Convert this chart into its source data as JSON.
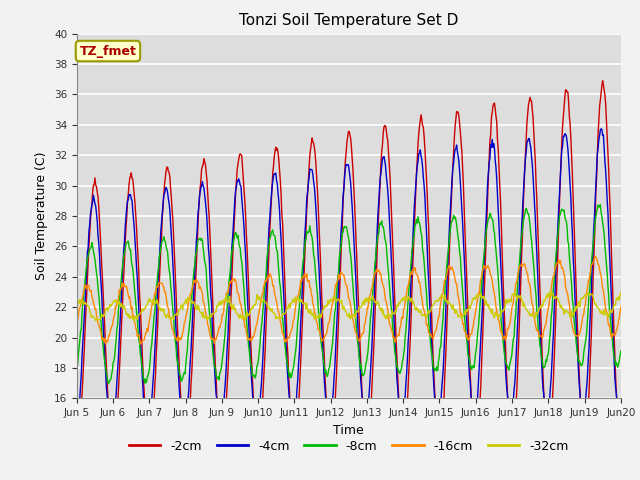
{
  "title": "Tonzi Soil Temperature Set D",
  "xlabel": "Time",
  "ylabel": "Soil Temperature (C)",
  "ylim": [
    16,
    40
  ],
  "yticks": [
    16,
    18,
    20,
    22,
    24,
    26,
    28,
    30,
    32,
    34,
    36,
    38,
    40
  ],
  "n_days": 15,
  "pts_per_day": 48,
  "series_order": [
    "-2cm",
    "-4cm",
    "-8cm",
    "-16cm",
    "-32cm"
  ],
  "series": {
    "-2cm": {
      "color": "#cc0000",
      "amplitude": 8.5,
      "base": 21.5,
      "lag_hours": 0.0
    },
    "-4cm": {
      "color": "#0000cc",
      "amplitude": 7.5,
      "base": 21.5,
      "lag_hours": 1.0
    },
    "-8cm": {
      "color": "#00bb00",
      "amplitude": 4.5,
      "base": 21.5,
      "lag_hours": 2.5
    },
    "-16cm": {
      "color": "#ff8800",
      "amplitude": 1.8,
      "base": 21.5,
      "lag_hours": 5.0
    },
    "-32cm": {
      "color": "#cccc00",
      "amplitude": 0.55,
      "base": 21.8,
      "lag_hours": 10.0
    }
  },
  "warming": {
    "-2cm": 3.5,
    "-4cm": 3.0,
    "-8cm": 2.0,
    "-16cm": 1.2,
    "-32cm": 0.4
  },
  "amp_growth": {
    "-2cm": 3.5,
    "-4cm": 2.0,
    "-8cm": 0.8,
    "-16cm": 0.8,
    "-32cm": 0.15
  },
  "annotation": {
    "text": "TZ_fmet",
    "color": "#aa0000",
    "bg_color": "#ffffcc",
    "border_color": "#999900",
    "fontsize": 9,
    "fontweight": "bold"
  },
  "plot_bg": "#dddddd",
  "fig_bg": "#f2f2f2",
  "grid_color": "#ffffff",
  "linewidth": 1.0
}
